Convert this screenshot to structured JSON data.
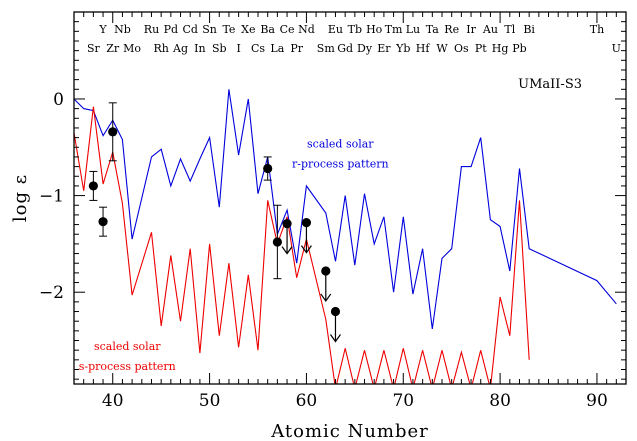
{
  "chart_data": {
    "type": "line",
    "xlabel": "Atomic Number",
    "ylabel": "log ε",
    "xlim": [
      36,
      93
    ],
    "ylim": [
      -2.95,
      0.9
    ],
    "x_ticks": [
      40,
      50,
      60,
      70,
      80,
      90
    ],
    "y_ticks": [
      0,
      -1,
      -2
    ],
    "star_label": "UMaII-S3",
    "element_labels_top": [
      {
        "symbol": "Y",
        "z": 39
      },
      {
        "symbol": "Nb",
        "z": 41
      },
      {
        "symbol": "Ru",
        "z": 44
      },
      {
        "symbol": "Pd",
        "z": 46
      },
      {
        "symbol": "Cd",
        "z": 48
      },
      {
        "symbol": "Sn",
        "z": 50
      },
      {
        "symbol": "Te",
        "z": 52
      },
      {
        "symbol": "Xe",
        "z": 54
      },
      {
        "symbol": "Ba",
        "z": 56
      },
      {
        "symbol": "Ce",
        "z": 58
      },
      {
        "symbol": "Nd",
        "z": 60
      },
      {
        "symbol": "Eu",
        "z": 63
      },
      {
        "symbol": "Tb",
        "z": 65
      },
      {
        "symbol": "Ho",
        "z": 67
      },
      {
        "symbol": "Tm",
        "z": 69
      },
      {
        "symbol": "Lu",
        "z": 71
      },
      {
        "symbol": "Ta",
        "z": 73
      },
      {
        "symbol": "Re",
        "z": 75
      },
      {
        "symbol": "Ir",
        "z": 77
      },
      {
        "symbol": "Au",
        "z": 79
      },
      {
        "symbol": "Tl",
        "z": 81
      },
      {
        "symbol": "Bi",
        "z": 83
      },
      {
        "symbol": "Th",
        "z": 90
      }
    ],
    "element_labels_bottom": [
      {
        "symbol": "Sr",
        "z": 38
      },
      {
        "symbol": "Zr",
        "z": 40
      },
      {
        "symbol": "Mo",
        "z": 42
      },
      {
        "symbol": "Rh",
        "z": 45
      },
      {
        "symbol": "Ag",
        "z": 47
      },
      {
        "symbol": "In",
        "z": 49
      },
      {
        "symbol": "Sb",
        "z": 51
      },
      {
        "symbol": "I",
        "z": 53
      },
      {
        "symbol": "Cs",
        "z": 55
      },
      {
        "symbol": "La",
        "z": 57
      },
      {
        "symbol": "Pr",
        "z": 59
      },
      {
        "symbol": "Sm",
        "z": 62
      },
      {
        "symbol": "Gd",
        "z": 64
      },
      {
        "symbol": "Dy",
        "z": 66
      },
      {
        "symbol": "Er",
        "z": 68
      },
      {
        "symbol": "Yb",
        "z": 70
      },
      {
        "symbol": "Hf",
        "z": 72
      },
      {
        "symbol": "W",
        "z": 74
      },
      {
        "symbol": "Os",
        "z": 76
      },
      {
        "symbol": "Pt",
        "z": 78
      },
      {
        "symbol": "Hg",
        "z": 80
      },
      {
        "symbol": "Pb",
        "z": 82
      },
      {
        "symbol": "U",
        "z": 92
      }
    ],
    "annotations": [
      {
        "lines": [
          "scaled solar",
          "r-process pattern"
        ],
        "color": "#0000dd",
        "at": [
          63.5,
          -0.5
        ]
      },
      {
        "lines": [
          "scaled solar",
          "s-process pattern"
        ],
        "color": "#ee0000",
        "at": [
          41.5,
          -2.6
        ]
      }
    ],
    "series": [
      {
        "color": "#0000dd",
        "points": [
          [
            36,
            0.0
          ],
          [
            37,
            -0.1
          ],
          [
            38,
            -0.12
          ],
          [
            39,
            -0.38
          ],
          [
            40,
            -0.22
          ],
          [
            41,
            -0.42
          ],
          [
            42,
            -1.45
          ],
          [
            44,
            -0.6
          ],
          [
            45,
            -0.52
          ],
          [
            46,
            -0.9
          ],
          [
            47,
            -0.62
          ],
          [
            48,
            -0.85
          ],
          [
            49,
            -0.62
          ],
          [
            50,
            -0.4
          ],
          [
            51,
            -1.12
          ],
          [
            52,
            0.1
          ],
          [
            53,
            -0.58
          ],
          [
            54,
            0.0
          ],
          [
            55,
            -0.98
          ],
          [
            56,
            -0.6
          ],
          [
            57,
            -1.4
          ],
          [
            58,
            -1.15
          ],
          [
            59,
            -1.7
          ],
          [
            60,
            -0.9
          ],
          [
            62,
            -1.18
          ],
          [
            63,
            -1.68
          ],
          [
            64,
            -1.0
          ],
          [
            65,
            -1.72
          ],
          [
            66,
            -0.98
          ],
          [
            67,
            -1.5
          ],
          [
            68,
            -1.22
          ],
          [
            69,
            -2.0
          ],
          [
            70,
            -1.22
          ],
          [
            71,
            -2.02
          ],
          [
            72,
            -1.55
          ],
          [
            73,
            -2.38
          ],
          [
            74,
            -1.65
          ],
          [
            75,
            -1.55
          ],
          [
            76,
            -0.7
          ],
          [
            77,
            -0.7
          ],
          [
            78,
            -0.4
          ],
          [
            79,
            -1.25
          ],
          [
            80,
            -1.32
          ],
          [
            81,
            -1.78
          ],
          [
            82,
            -0.72
          ],
          [
            83,
            -1.55
          ],
          [
            90,
            -1.88
          ],
          [
            92,
            -2.12
          ]
        ]
      },
      {
        "color": "#ee0000",
        "points": [
          [
            36,
            -0.35
          ],
          [
            37,
            -0.95
          ],
          [
            38,
            -0.08
          ],
          [
            39,
            -0.88
          ],
          [
            40,
            -0.55
          ],
          [
            41,
            -1.08
          ],
          [
            42,
            -2.03
          ],
          [
            44,
            -1.38
          ],
          [
            45,
            -2.35
          ],
          [
            46,
            -1.62
          ],
          [
            47,
            -2.3
          ],
          [
            48,
            -1.55
          ],
          [
            49,
            -2.63
          ],
          [
            50,
            -1.5
          ],
          [
            51,
            -2.45
          ],
          [
            52,
            -1.7
          ],
          [
            53,
            -2.57
          ],
          [
            54,
            -1.82
          ],
          [
            55,
            -2.6
          ],
          [
            56,
            -1.05
          ],
          [
            57,
            -1.5
          ],
          [
            58,
            -1.22
          ],
          [
            59,
            -1.85
          ],
          [
            60,
            -1.45
          ],
          [
            62,
            -2.28
          ],
          [
            63,
            -3.0
          ],
          [
            64,
            -2.58
          ],
          [
            65,
            -3.0
          ],
          [
            66,
            -2.6
          ],
          [
            67,
            -3.0
          ],
          [
            68,
            -2.6
          ],
          [
            69,
            -3.0
          ],
          [
            70,
            -2.58
          ],
          [
            71,
            -3.0
          ],
          [
            72,
            -2.6
          ],
          [
            73,
            -3.0
          ],
          [
            74,
            -2.6
          ],
          [
            75,
            -3.0
          ],
          [
            76,
            -2.62
          ],
          [
            77,
            -3.0
          ],
          [
            78,
            -2.6
          ],
          [
            79,
            -3.0
          ],
          [
            80,
            -2.05
          ],
          [
            81,
            -2.45
          ],
          [
            82,
            -1.05
          ],
          [
            83,
            -2.7
          ]
        ]
      }
    ],
    "observations": [
      {
        "z": 38,
        "y": -0.9,
        "err": 0.15,
        "upper_limit": false
      },
      {
        "z": 39,
        "y": -1.27,
        "err": 0.15,
        "upper_limit": false
      },
      {
        "z": 40,
        "y": -0.34,
        "err": 0.3,
        "upper_limit": false
      },
      {
        "z": 56,
        "y": -0.72,
        "err": 0.12,
        "upper_limit": false
      },
      {
        "z": 57,
        "y": -1.48,
        "err": 0.38,
        "upper_limit": false
      },
      {
        "z": 58,
        "y": -1.29,
        "err": 0,
        "upper_limit": true
      },
      {
        "z": 60,
        "y": -1.28,
        "err": 0,
        "upper_limit": true
      },
      {
        "z": 62,
        "y": -1.78,
        "err": 0,
        "upper_limit": true
      },
      {
        "z": 63,
        "y": -2.2,
        "err": 0,
        "upper_limit": true
      }
    ]
  }
}
